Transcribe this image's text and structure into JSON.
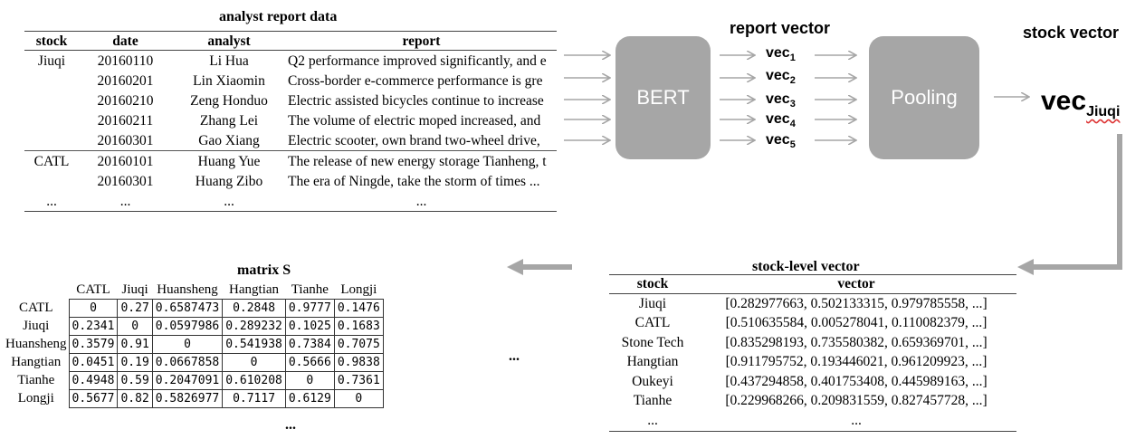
{
  "analyst_table": {
    "title": "analyst report data",
    "headers": [
      "stock",
      "date",
      "analyst",
      "report"
    ],
    "rows": [
      [
        "Jiuqi",
        "20160110",
        "Li Hua",
        "Q2 performance improved significantly, and e"
      ],
      [
        "",
        "20160201",
        "Lin Xiaomin",
        "Cross-border e-commerce performance is gre"
      ],
      [
        "",
        "20160210",
        "Zeng Honduo",
        "Electric assisted bicycles continue to increase"
      ],
      [
        "",
        "20160211",
        "Zhang Lei",
        "The volume of electric moped increased, and"
      ],
      [
        "",
        "20160301",
        "Gao Xiang",
        "Electric scooter, own brand two-wheel drive,"
      ],
      [
        "CATL",
        "20160101",
        "Huang Yue",
        "The release of new energy storage Tianheng, t"
      ],
      [
        "",
        "20160301",
        "Huang Zibo",
        "The era of Ningde, take the storm of times ..."
      ],
      [
        "...",
        "...",
        "...",
        "..."
      ]
    ]
  },
  "bert_label": "BERT",
  "pooling_label": "Pooling",
  "report_vector_label": "report vector",
  "stock_vector_label": "stock vector",
  "report_vectors": [
    {
      "base": "vec",
      "sub": "1"
    },
    {
      "base": "vec",
      "sub": "2"
    },
    {
      "base": "vec",
      "sub": "3"
    },
    {
      "base": "vec",
      "sub": "4"
    },
    {
      "base": "vec",
      "sub": "5"
    }
  ],
  "stock_vec": {
    "base": "vec",
    "sub": "Jiuqi"
  },
  "matrix": {
    "title": "matrix S",
    "labels": [
      "CATL",
      "Jiuqi",
      "Huansheng",
      "Hangtian",
      "Tianhe",
      "Longji"
    ],
    "values": [
      [
        "0",
        "0.27",
        "0.6587473",
        "0.2848",
        "0.9777",
        "0.1476"
      ],
      [
        "0.2341",
        "0",
        "0.0597986",
        "0.289232",
        "0.1025",
        "0.1683"
      ],
      [
        "0.3579",
        "0.91",
        "0",
        "0.541938",
        "0.7384",
        "0.7075"
      ],
      [
        "0.0451",
        "0.19",
        "0.0667858",
        "0",
        "0.5666",
        "0.9838"
      ],
      [
        "0.4948",
        "0.59",
        "0.2047091",
        "0.610208",
        "0",
        "0.7361"
      ],
      [
        "0.5677",
        "0.82",
        "0.5826977",
        "0.7117",
        "0.6129",
        "0"
      ]
    ],
    "ellipsis_right": "...",
    "ellipsis_bottom": "..."
  },
  "stock_level": {
    "title": "stock-level vector",
    "headers": [
      "stock",
      "vector"
    ],
    "rows": [
      [
        "Jiuqi",
        "[0.282977663, 0.502133315, 0.979785558, ...]"
      ],
      [
        "CATL",
        "[0.510635584, 0.005278041, 0.110082379, ...]"
      ],
      [
        "Stone Tech",
        "[0.835298193, 0.735580382, 0.659369701, ...]"
      ],
      [
        "Hangtian",
        "[0.911795752, 0.193446021, 0.961209923, ...]"
      ],
      [
        "Oukeyi",
        "[0.437294858, 0.401753408, 0.445989163, ...]"
      ],
      [
        "Tianhe",
        "[0.229968266, 0.209831559, 0.827457728, ...]"
      ],
      [
        "...",
        "..."
      ]
    ]
  },
  "colors": {
    "box": "#a6a6a6",
    "arrow": "#a6a6a6",
    "text": "#000000"
  }
}
